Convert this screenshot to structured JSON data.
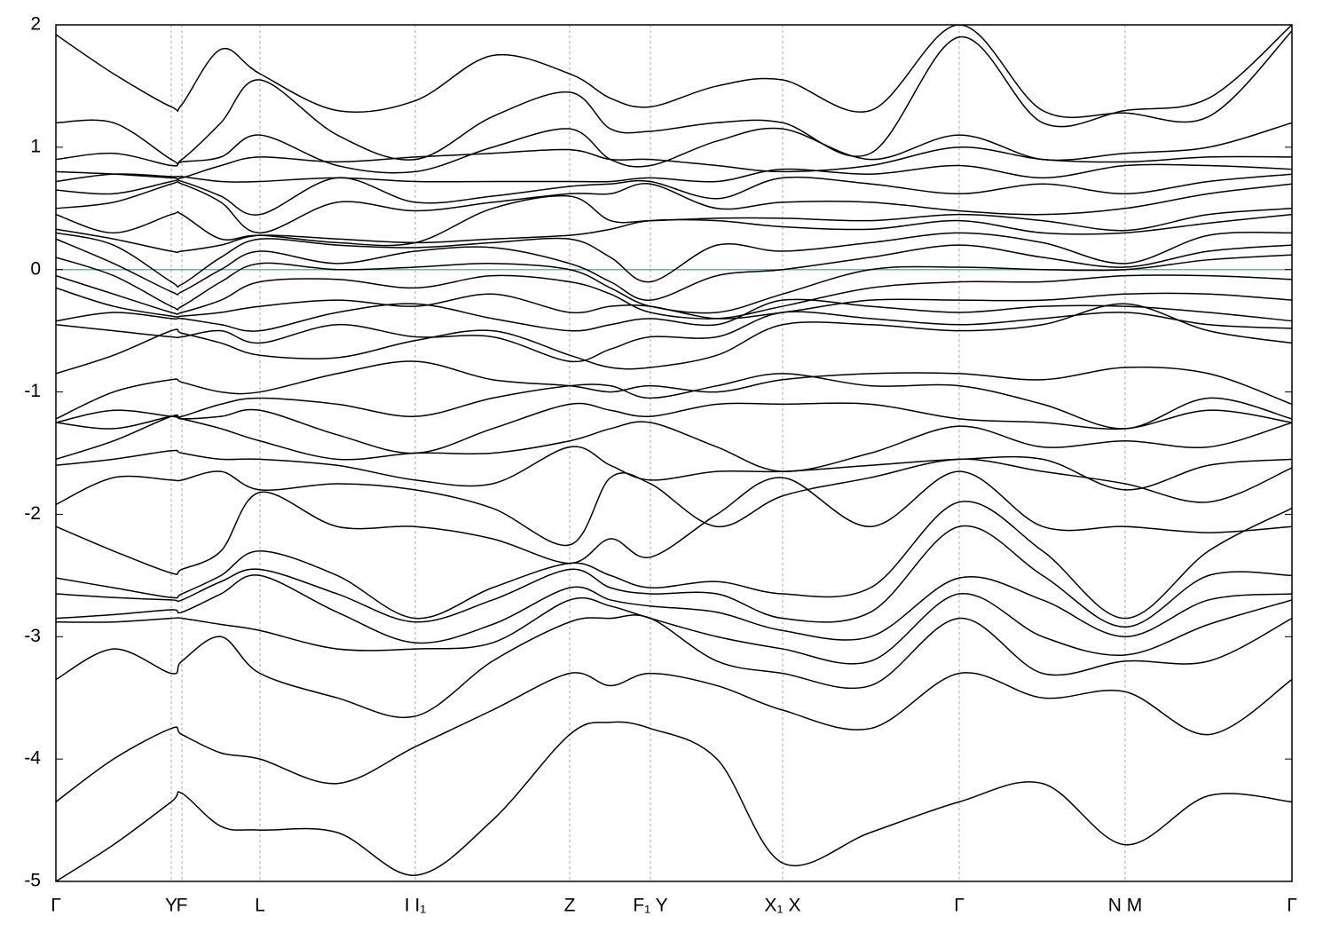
{
  "chart_data": {
    "type": "line",
    "line_color": "#000000",
    "grid": "x",
    "grid_color": "#aaaaaa",
    "reference_line": {
      "value": 0,
      "color": "#5ab4c8"
    },
    "xlim": [
      0,
      13.93
    ],
    "ylim": [
      -5,
      2
    ],
    "yticks": [
      -5,
      -4,
      -3,
      -2,
      -1,
      0,
      1,
      2
    ],
    "xticks": [
      {
        "value": 0,
        "label": "Γ"
      },
      {
        "value": 1.3,
        "label": "Y"
      },
      {
        "value": 1.42,
        "label": "F"
      },
      {
        "value": 2.3,
        "label": "L"
      },
      {
        "value": 4.05,
        "label": "I  I₁"
      },
      {
        "value": 5.79,
        "label": "Z"
      },
      {
        "value": 6.7,
        "label": "F₁ Y"
      },
      {
        "value": 8.19,
        "label": "X₁ X"
      },
      {
        "value": 10.18,
        "label": "Γ"
      },
      {
        "value": 12.05,
        "label": "N M"
      },
      {
        "value": 13.93,
        "label": "Γ"
      }
    ],
    "x": [
      0,
      0.65,
      1.3,
      1.42,
      1.86,
      2.3,
      3.17,
      4.05,
      4.92,
      5.79,
      6.25,
      6.7,
      7.45,
      8.19,
      9.18,
      10.18,
      11.12,
      12.05,
      12.99,
      13.93
    ],
    "series": [
      {
        "values": [
          1.92,
          1.6,
          1.33,
          1.35,
          1.8,
          1.6,
          1.3,
          1.38,
          1.75,
          1.6,
          1.4,
          1.33,
          1.5,
          1.55,
          1.3,
          2.0,
          1.3,
          1.28,
          1.25,
          1.95
        ]
      },
      {
        "values": [
          1.2,
          1.2,
          0.9,
          0.9,
          1.2,
          1.55,
          1.1,
          0.9,
          1.25,
          1.45,
          1.15,
          1.13,
          1.2,
          1.2,
          0.95,
          1.9,
          1.2,
          1.3,
          1.4,
          2.0
        ]
      },
      {
        "values": [
          0.9,
          0.95,
          0.85,
          0.88,
          0.92,
          1.1,
          0.85,
          0.8,
          1.0,
          1.15,
          0.9,
          0.85,
          1.05,
          1.15,
          0.9,
          1.1,
          0.9,
          0.95,
          1.0,
          1.2
        ]
      },
      {
        "values": [
          0.8,
          0.78,
          0.75,
          0.75,
          0.85,
          0.92,
          0.88,
          0.92,
          0.95,
          0.98,
          0.9,
          0.9,
          0.85,
          0.8,
          0.85,
          1.0,
          0.9,
          0.88,
          0.92,
          0.92
        ]
      },
      {
        "values": [
          0.72,
          0.78,
          0.76,
          0.76,
          0.72,
          0.72,
          0.75,
          0.72,
          0.72,
          0.72,
          0.72,
          0.75,
          0.72,
          0.82,
          0.78,
          0.85,
          0.75,
          0.85,
          0.85,
          0.82
        ]
      },
      {
        "values": [
          0.65,
          0.62,
          0.72,
          0.72,
          0.6,
          0.45,
          0.75,
          0.55,
          0.6,
          0.68,
          0.7,
          0.72,
          0.58,
          0.75,
          0.7,
          0.62,
          0.7,
          0.62,
          0.72,
          0.78
        ]
      },
      {
        "values": [
          0.5,
          0.55,
          0.7,
          0.7,
          0.55,
          0.3,
          0.55,
          0.48,
          0.55,
          0.62,
          0.62,
          0.7,
          0.5,
          0.55,
          0.55,
          0.48,
          0.45,
          0.5,
          0.62,
          0.7
        ]
      },
      {
        "values": [
          0.45,
          0.3,
          0.45,
          0.45,
          0.25,
          0.28,
          0.22,
          0.22,
          0.5,
          0.6,
          0.4,
          0.4,
          0.42,
          0.42,
          0.4,
          0.45,
          0.4,
          0.32,
          0.45,
          0.5
        ]
      },
      {
        "values": [
          0.33,
          0.25,
          0.15,
          0.15,
          0.2,
          0.28,
          0.25,
          0.22,
          0.25,
          0.28,
          0.33,
          0.4,
          0.4,
          0.35,
          0.33,
          0.4,
          0.3,
          0.3,
          0.38,
          0.45
        ]
      },
      {
        "values": [
          0.3,
          0.2,
          -0.1,
          -0.12,
          0.1,
          0.25,
          0.2,
          0.18,
          0.22,
          0.25,
          0.1,
          -0.1,
          0.2,
          0.15,
          0.22,
          0.3,
          0.22,
          0.05,
          0.28,
          0.3
        ]
      },
      {
        "values": [
          0.25,
          0.05,
          -0.18,
          -0.18,
          0.0,
          0.15,
          0.05,
          0.15,
          0.18,
          0.05,
          -0.1,
          -0.25,
          -0.05,
          0.0,
          0.1,
          0.2,
          0.1,
          0.02,
          0.15,
          0.2
        ]
      },
      {
        "values": [
          0.1,
          -0.05,
          -0.3,
          -0.3,
          -0.1,
          0.05,
          0.0,
          0.02,
          0.05,
          0.0,
          -0.15,
          -0.3,
          -0.35,
          -0.2,
          0.0,
          0.02,
          0.0,
          0.0,
          0.08,
          0.12
        ]
      },
      {
        "values": [
          -0.05,
          -0.2,
          -0.35,
          -0.35,
          -0.25,
          -0.1,
          -0.08,
          -0.15,
          -0.05,
          -0.1,
          -0.2,
          -0.35,
          -0.4,
          -0.3,
          -0.15,
          -0.1,
          -0.1,
          -0.05,
          -0.05,
          -0.08
        ]
      },
      {
        "values": [
          -0.15,
          -0.3,
          -0.38,
          -0.38,
          -0.35,
          -0.3,
          -0.25,
          -0.3,
          -0.2,
          -0.35,
          -0.3,
          -0.3,
          -0.4,
          -0.35,
          -0.25,
          -0.25,
          -0.25,
          -0.2,
          -0.2,
          -0.25
        ]
      },
      {
        "values": [
          -0.42,
          -0.35,
          -0.4,
          -0.4,
          -0.45,
          -0.5,
          -0.35,
          -0.28,
          -0.4,
          -0.5,
          -0.45,
          -0.4,
          -0.45,
          -0.25,
          -0.3,
          -0.35,
          -0.3,
          -0.3,
          -0.35,
          -0.42
        ]
      },
      {
        "values": [
          -0.45,
          -0.5,
          -0.55,
          -0.55,
          -0.5,
          -0.6,
          -0.45,
          -0.55,
          -0.55,
          -0.75,
          -0.65,
          -0.55,
          -0.55,
          -0.35,
          -0.4,
          -0.45,
          -0.4,
          -0.35,
          -0.45,
          -0.48
        ]
      },
      {
        "values": [
          -0.85,
          -0.7,
          -0.5,
          -0.52,
          -0.6,
          -0.7,
          -0.72,
          -0.58,
          -0.5,
          -0.7,
          -0.8,
          -0.8,
          -0.7,
          -0.45,
          -0.45,
          -0.5,
          -0.45,
          -0.28,
          -0.5,
          -0.6
        ]
      },
      {
        "values": [
          -1.22,
          -1.0,
          -0.9,
          -0.92,
          -1.0,
          -1.0,
          -0.85,
          -0.75,
          -0.9,
          -0.95,
          -1.0,
          -0.95,
          -1.0,
          -0.9,
          -0.85,
          -0.85,
          -0.9,
          -0.8,
          -0.85,
          -1.1
        ]
      },
      {
        "values": [
          -1.25,
          -1.15,
          -1.2,
          -1.2,
          -1.1,
          -1.05,
          -1.1,
          -1.2,
          -1.05,
          -0.95,
          -0.95,
          -1.05,
          -0.95,
          -0.85,
          -0.95,
          -0.95,
          -1.1,
          -1.3,
          -1.05,
          -1.22
        ]
      },
      {
        "values": [
          -1.25,
          -1.3,
          -1.2,
          -1.22,
          -1.2,
          -1.15,
          -1.35,
          -1.5,
          -1.3,
          -1.1,
          -1.15,
          -1.2,
          -1.1,
          -1.1,
          -1.1,
          -1.22,
          -1.25,
          -1.3,
          -1.15,
          -1.25
        ]
      },
      {
        "values": [
          -1.55,
          -1.4,
          -1.2,
          -1.22,
          -1.3,
          -1.4,
          -1.55,
          -1.5,
          -1.5,
          -1.4,
          -1.3,
          -1.25,
          -1.45,
          -1.65,
          -1.5,
          -1.28,
          -1.45,
          -1.4,
          -1.45,
          -1.25
        ]
      },
      {
        "values": [
          -1.6,
          -1.55,
          -1.48,
          -1.5,
          -1.55,
          -1.55,
          -1.6,
          -1.72,
          -1.75,
          -1.45,
          -1.6,
          -1.72,
          -1.65,
          -1.65,
          -1.6,
          -1.55,
          -1.55,
          -1.8,
          -1.6,
          -1.55
        ]
      },
      {
        "values": [
          -1.92,
          -1.7,
          -1.72,
          -1.72,
          -1.65,
          -1.8,
          -1.75,
          -1.8,
          -1.95,
          -2.25,
          -1.7,
          -1.75,
          -2.1,
          -1.85,
          -1.7,
          -1.55,
          -1.65,
          -1.75,
          -1.9,
          -1.62
        ]
      },
      {
        "values": [
          -2.1,
          -2.3,
          -2.48,
          -2.45,
          -2.3,
          -1.82,
          -2.1,
          -2.1,
          -2.2,
          -2.4,
          -2.2,
          -2.35,
          -2.0,
          -1.7,
          -2.1,
          -1.65,
          -2.1,
          -2.1,
          -2.15,
          -2.1
        ]
      },
      {
        "values": [
          -2.52,
          -2.6,
          -2.68,
          -2.65,
          -2.5,
          -2.3,
          -2.5,
          -2.85,
          -2.6,
          -2.4,
          -2.5,
          -2.6,
          -2.55,
          -2.65,
          -2.6,
          -1.9,
          -2.3,
          -2.85,
          -2.3,
          -1.95
        ]
      },
      {
        "values": [
          -2.65,
          -2.68,
          -2.7,
          -2.7,
          -2.55,
          -2.45,
          -2.65,
          -2.88,
          -2.7,
          -2.45,
          -2.6,
          -2.65,
          -2.65,
          -2.85,
          -2.8,
          -2.1,
          -2.5,
          -2.92,
          -2.5,
          -2.5
        ]
      },
      {
        "values": [
          -2.85,
          -2.82,
          -2.78,
          -2.8,
          -2.65,
          -2.5,
          -2.8,
          -3.05,
          -2.9,
          -2.6,
          -2.7,
          -2.75,
          -2.8,
          -2.95,
          -3.0,
          -2.52,
          -2.7,
          -3.0,
          -2.7,
          -2.65
        ]
      },
      {
        "values": [
          -2.88,
          -2.88,
          -2.85,
          -2.85,
          -2.9,
          -2.95,
          -3.1,
          -3.1,
          -3.05,
          -2.7,
          -2.75,
          -2.85,
          -3.0,
          -3.1,
          -3.2,
          -2.65,
          -3.0,
          -3.15,
          -2.9,
          -2.7
        ]
      },
      {
        "values": [
          -3.35,
          -3.1,
          -3.3,
          -3.2,
          -3.0,
          -3.3,
          -3.5,
          -3.65,
          -3.2,
          -2.88,
          -2.85,
          -2.85,
          -3.2,
          -3.3,
          -3.4,
          -2.85,
          -3.3,
          -3.2,
          -3.2,
          -2.85
        ]
      },
      {
        "values": [
          -4.35,
          -4.0,
          -3.75,
          -3.8,
          -3.95,
          -4.0,
          -4.2,
          -3.9,
          -3.6,
          -3.3,
          -3.4,
          -3.3,
          -3.4,
          -3.6,
          -3.75,
          -3.3,
          -3.5,
          -3.45,
          -3.8,
          -3.35
        ]
      },
      {
        "values": [
          -5.0,
          -4.7,
          -4.35,
          -4.28,
          -4.55,
          -4.58,
          -4.6,
          -4.95,
          -4.5,
          -3.8,
          -3.7,
          -3.75,
          -4.0,
          -4.85,
          -4.6,
          -4.35,
          -4.2,
          -4.7,
          -4.3,
          -4.35
        ]
      }
    ]
  }
}
